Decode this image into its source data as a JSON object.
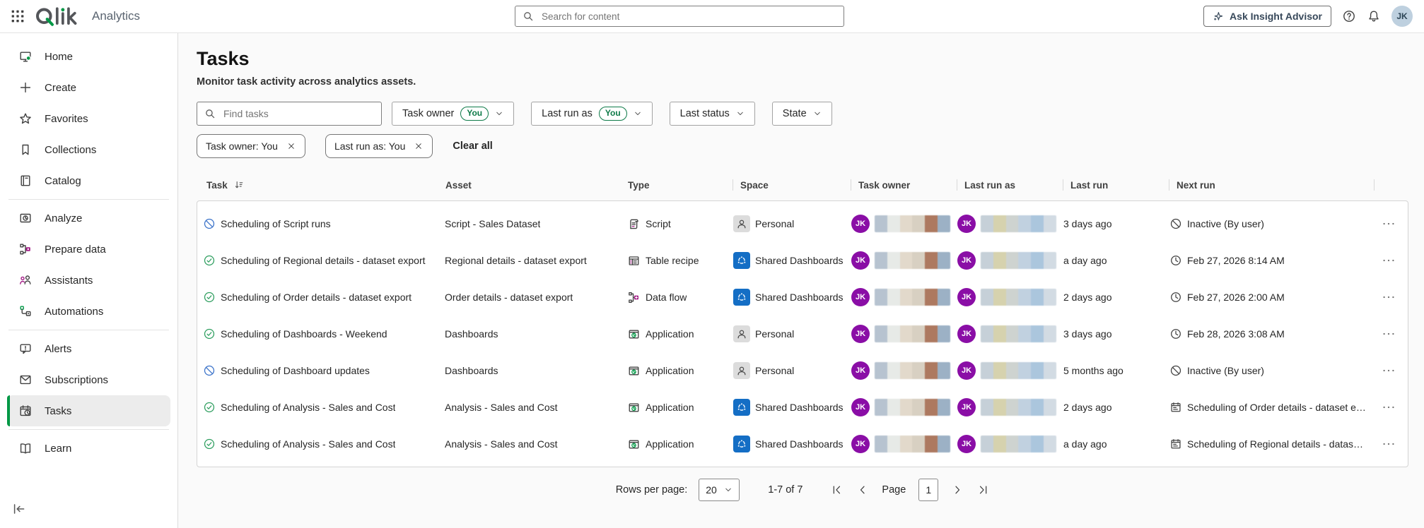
{
  "topbar": {
    "logo": "Qlik",
    "product": "Analytics",
    "search_placeholder": "Search for content",
    "ask_insight_advisor": "Ask Insight Advisor",
    "user_initials": "JK"
  },
  "sidebar": {
    "groups": [
      {
        "items": [
          {
            "label": "Home",
            "icon": "home"
          },
          {
            "label": "Create",
            "icon": "plus"
          },
          {
            "label": "Favorites",
            "icon": "star"
          },
          {
            "label": "Collections",
            "icon": "collections"
          },
          {
            "label": "Catalog",
            "icon": "catalog"
          }
        ]
      },
      {
        "items": [
          {
            "label": "Analyze",
            "icon": "analyze"
          },
          {
            "label": "Prepare data",
            "icon": "prepare"
          },
          {
            "label": "Assistants",
            "icon": "assistants"
          },
          {
            "label": "Automations",
            "icon": "automations"
          }
        ]
      },
      {
        "items": [
          {
            "label": "Alerts",
            "icon": "alerts"
          },
          {
            "label": "Subscriptions",
            "icon": "subscriptions"
          },
          {
            "label": "Tasks",
            "icon": "tasks",
            "active": true
          }
        ]
      },
      {
        "items": [
          {
            "label": "Learn",
            "icon": "learn"
          }
        ]
      }
    ]
  },
  "page": {
    "title": "Tasks",
    "subtitle": "Monitor task activity across analytics assets.",
    "filters": {
      "find_placeholder": "Find tasks",
      "dropdowns": [
        {
          "label": "Task owner",
          "badge": "You"
        },
        {
          "label": "Last run as",
          "badge": "You"
        },
        {
          "label": "Last status"
        },
        {
          "label": "State"
        }
      ],
      "chips": [
        {
          "label": "Task owner: You"
        },
        {
          "label": "Last run as: You"
        }
      ],
      "clear_all": "Clear all"
    },
    "table": {
      "columns": [
        "Task",
        "Asset",
        "Type",
        "Space",
        "Task owner",
        "Last run as",
        "Last run",
        "Next run"
      ],
      "rows": [
        {
          "status": "disabled",
          "task": "Scheduling of Script runs",
          "asset": "Script - Sales Dataset",
          "type": "Script",
          "type_icon": "script",
          "space": "Personal",
          "space_kind": "personal",
          "owner": "JK",
          "run_as": "JK",
          "last_run": "3 days ago",
          "next_run": "Inactive (By user)",
          "next_icon": "inactive"
        },
        {
          "status": "ok",
          "task": "Scheduling of Regional details - dataset export",
          "asset": "Regional details - dataset export",
          "type": "Table recipe",
          "type_icon": "tablerecipe",
          "space": "Shared Dashboards",
          "space_kind": "shared",
          "owner": "JK",
          "run_as": "JK",
          "last_run": "a day ago",
          "next_run": "Feb 27, 2026 8:14 AM",
          "next_icon": "clock"
        },
        {
          "status": "ok",
          "task": "Scheduling of Order details - dataset export",
          "asset": "Order details - dataset export",
          "type": "Data flow",
          "type_icon": "dataflow",
          "space": "Shared Dashboards",
          "space_kind": "shared",
          "owner": "JK",
          "run_as": "JK",
          "last_run": "2 days ago",
          "next_run": "Feb 27, 2026 2:00 AM",
          "next_icon": "clock"
        },
        {
          "status": "ok",
          "task": "Scheduling of Dashboards - Weekend",
          "asset": "Dashboards",
          "type": "Application",
          "type_icon": "application",
          "space": "Personal",
          "space_kind": "personal",
          "owner": "JK",
          "run_as": "JK",
          "last_run": "3 days ago",
          "next_run": "Feb 28, 2026 3:08 AM",
          "next_icon": "clock"
        },
        {
          "status": "disabled",
          "task": "Scheduling of Dashboard updates",
          "asset": "Dashboards",
          "type": "Application",
          "type_icon": "application",
          "space": "Personal",
          "space_kind": "personal",
          "owner": "JK",
          "run_as": "JK",
          "last_run": "5 months ago",
          "next_run": "Inactive (By user)",
          "next_icon": "inactive"
        },
        {
          "status": "ok",
          "task": "Scheduling of Analysis - Sales and Cost",
          "asset": "Analysis - Sales and Cost",
          "type": "Application",
          "type_icon": "application",
          "space": "Shared Dashboards",
          "space_kind": "shared",
          "owner": "JK",
          "run_as": "JK",
          "last_run": "2 days ago",
          "next_run": "Scheduling of Order details - dataset export",
          "next_icon": "calendar"
        },
        {
          "status": "ok",
          "task": "Scheduling of Analysis - Sales and Cost",
          "asset": "Analysis - Sales and Cost",
          "type": "Application",
          "type_icon": "application",
          "space": "Shared Dashboards",
          "space_kind": "shared",
          "owner": "JK",
          "run_as": "JK",
          "last_run": "a day ago",
          "next_run": "Scheduling of Regional details - dataset e...",
          "next_icon": "calendar"
        }
      ]
    },
    "pagination": {
      "rows_per_page_label": "Rows per page:",
      "rows_per_page_value": "20",
      "range": "1-7 of 7",
      "page_label": "Page",
      "page_value": "1"
    }
  },
  "colors": {
    "accent_green": "#009845",
    "avatar_purple": "#8a0ea6",
    "shared_blue": "#146ec5",
    "status_green": "#2e9e5f",
    "status_blue": "#3a72c9",
    "magenta": "#a21a85"
  },
  "redaction": {
    "owner_blocks": [
      "#b7c3d0",
      "#e7eae7",
      "#e2d9cb",
      "#d8d0c2",
      "#ad7960",
      "#9cb1c5"
    ],
    "runas_blocks": [
      "#c6d0d8",
      "#d6d2ae",
      "#ced3d0",
      "#c1d1e0",
      "#abc6dd",
      "#d2dbe3"
    ]
  }
}
